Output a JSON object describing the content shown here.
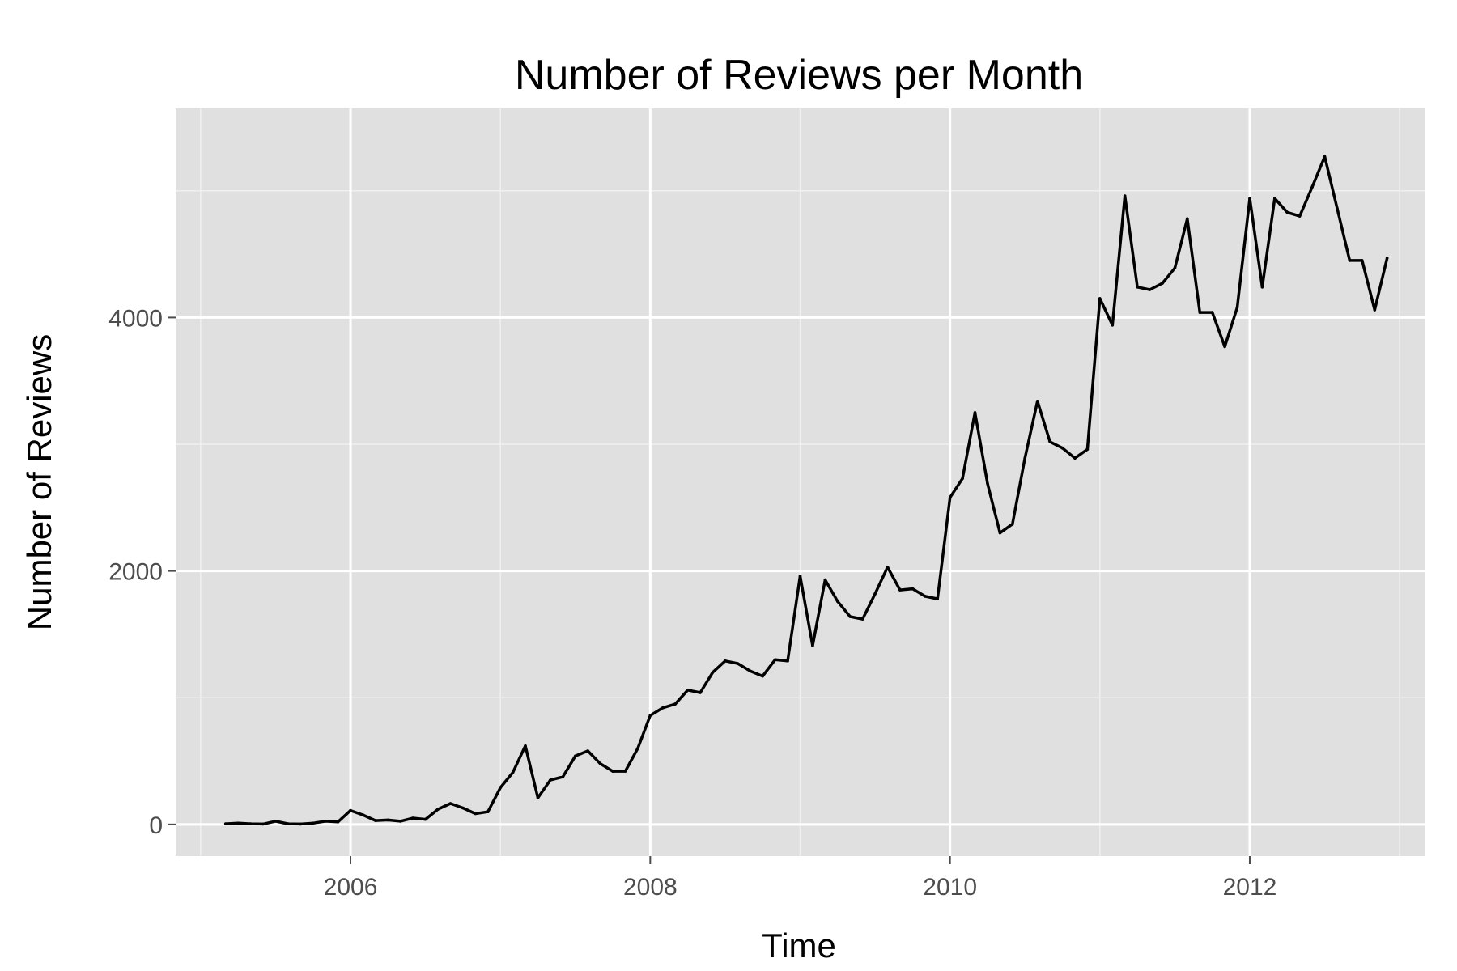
{
  "chart_data": {
    "type": "line",
    "title": "Number of Reviews per Month",
    "xlabel": "Time",
    "ylabel": "Number of Reviews",
    "xlim": [
      "2004-11",
      "2013-03"
    ],
    "ylim": [
      -250,
      5650
    ],
    "x_major_ticks": [
      "2006-01",
      "2008-01",
      "2010-01",
      "2012-01"
    ],
    "x_tick_labels": [
      "2006",
      "2008",
      "2010",
      "2012"
    ],
    "y_major_ticks": [
      0,
      2000,
      4000
    ],
    "y_tick_labels": [
      "0",
      "2000",
      "4000"
    ],
    "grid": true,
    "legend": "none",
    "colors": {
      "panel_background": "#e0e0e0",
      "grid_major": "#ffffff",
      "grid_minor": "#f0f0f0",
      "line": "#000000",
      "tick_label": "#4d4d4d"
    },
    "series": [
      {
        "x": [
          "2005-03",
          "2005-04",
          "2005-05",
          "2005-06",
          "2005-07",
          "2005-08",
          "2005-09",
          "2005-10",
          "2005-11",
          "2005-12",
          "2006-01",
          "2006-02",
          "2006-03",
          "2006-04",
          "2006-05",
          "2006-06",
          "2006-07",
          "2006-08",
          "2006-09",
          "2006-10",
          "2006-11",
          "2006-12",
          "2007-01",
          "2007-02",
          "2007-03",
          "2007-04",
          "2007-05",
          "2007-06",
          "2007-07",
          "2007-08",
          "2007-09",
          "2007-10",
          "2007-11",
          "2007-12",
          "2008-01",
          "2008-02",
          "2008-03",
          "2008-04",
          "2008-05",
          "2008-06",
          "2008-07",
          "2008-08",
          "2008-09",
          "2008-10",
          "2008-11",
          "2008-12",
          "2009-01",
          "2009-02",
          "2009-03",
          "2009-04",
          "2009-05",
          "2009-06",
          "2009-07",
          "2009-08",
          "2009-09",
          "2009-10",
          "2009-11",
          "2009-12",
          "2010-01",
          "2010-02",
          "2010-03",
          "2010-04",
          "2010-05",
          "2010-06",
          "2010-07",
          "2010-08",
          "2010-09",
          "2010-10",
          "2010-11",
          "2010-12",
          "2011-01",
          "2011-02",
          "2011-03",
          "2011-04",
          "2011-05",
          "2011-06",
          "2011-07",
          "2011-08",
          "2011-09",
          "2011-10",
          "2011-11",
          "2011-12",
          "2012-01",
          "2012-02",
          "2012-03",
          "2012-04",
          "2012-05",
          "2012-06",
          "2012-07",
          "2012-08",
          "2012-09",
          "2012-10",
          "2012-11",
          "2012-12"
        ],
        "values": [
          5,
          10,
          5,
          3,
          25,
          5,
          3,
          10,
          25,
          20,
          110,
          75,
          30,
          35,
          25,
          50,
          40,
          120,
          165,
          130,
          85,
          100,
          290,
          410,
          620,
          210,
          350,
          375,
          540,
          580,
          480,
          420,
          420,
          600,
          860,
          920,
          950,
          1060,
          1040,
          1200,
          1290,
          1270,
          1210,
          1170,
          1300,
          1290,
          1960,
          1410,
          1930,
          1760,
          1640,
          1620,
          1820,
          2030,
          1850,
          1860,
          1800,
          1780,
          2580,
          2730,
          3250,
          2690,
          2300,
          2370,
          2890,
          3340,
          3020,
          2970,
          2890,
          2960,
          4150,
          3940,
          4960,
          4240,
          4220,
          4270,
          4390,
          4780,
          4040,
          4040,
          3770,
          4080,
          4940,
          4240,
          4940,
          4830,
          4800,
          5030,
          5270,
          4860,
          4450,
          4450,
          4060,
          4470
        ]
      }
    ]
  }
}
